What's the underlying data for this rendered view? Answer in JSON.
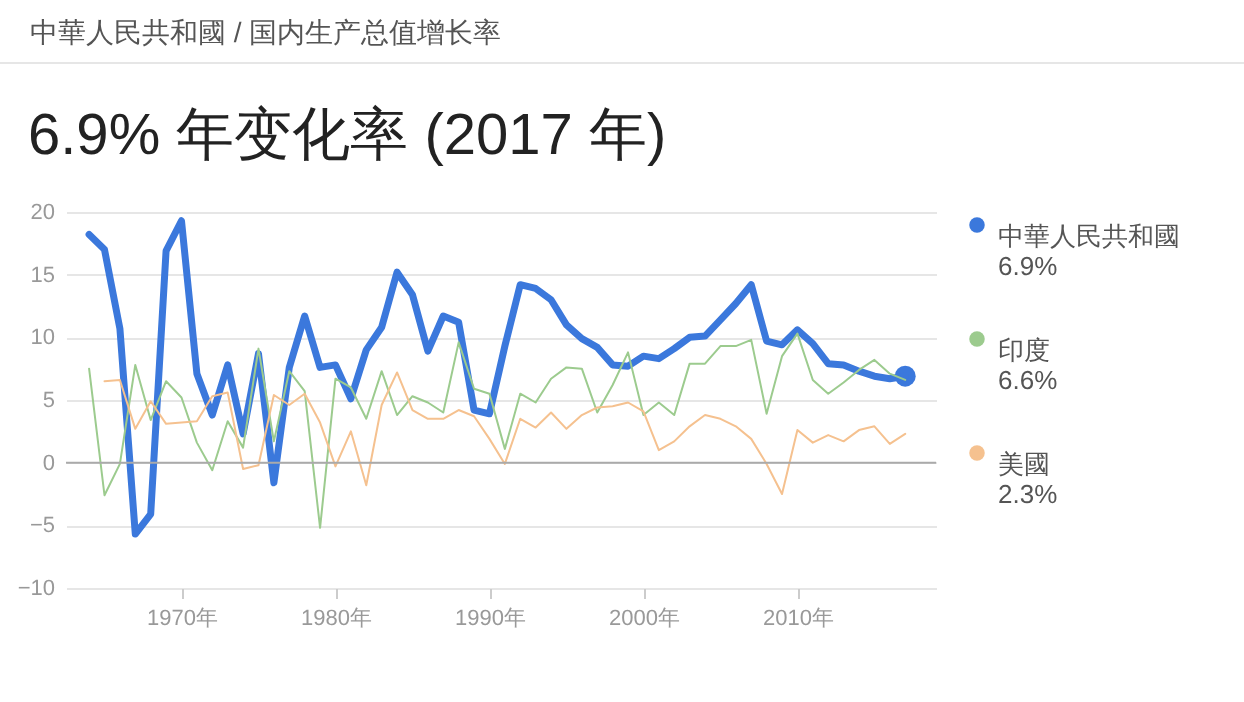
{
  "chart_data": {
    "type": "line",
    "subtitle": "中華人民共和國 / 国内生产总值增长率",
    "title": "6.9% 年变化率 (2017 年)",
    "xlim": [
      1962.5,
      2019
    ],
    "xticks": [
      {
        "value": 1970,
        "label": "1970年"
      },
      {
        "value": 1980,
        "label": "1980年"
      },
      {
        "value": 1990,
        "label": "1990年"
      },
      {
        "value": 2000,
        "label": "2000年"
      },
      {
        "value": 2010,
        "label": "2010年"
      }
    ],
    "ylim": [
      -10,
      20
    ],
    "yticks": [
      -10,
      -5,
      0,
      5,
      10,
      15,
      20
    ],
    "grid": "y",
    "legend": "right",
    "annotations": [
      "6.9%",
      "6.6%",
      "2.3%"
    ],
    "series": [
      {
        "name": "中華人民共和國",
        "color": "#3b78dc",
        "x": [
          1964,
          1965,
          1966,
          1967,
          1968,
          1969,
          1970,
          1971,
          1972,
          1973,
          1974,
          1975,
          1976,
          1977,
          1978,
          1979,
          1980,
          1981,
          1982,
          1983,
          1984,
          1985,
          1986,
          1987,
          1988,
          1989,
          1990,
          1991,
          1992,
          1993,
          1994,
          1995,
          1996,
          1997,
          1998,
          1999,
          2000,
          2001,
          2002,
          2003,
          2004,
          2005,
          2006,
          2007,
          2008,
          2009,
          2010,
          2011,
          2012,
          2013,
          2014,
          2015,
          2016,
          2017
        ],
        "values": [
          18.2,
          17.0,
          10.7,
          -5.7,
          -4.1,
          16.9,
          19.3,
          7.1,
          3.8,
          7.8,
          2.3,
          8.7,
          -1.6,
          7.6,
          11.7,
          7.6,
          7.8,
          5.1,
          9.0,
          10.8,
          15.2,
          13.4,
          8.9,
          11.7,
          11.2,
          4.2,
          3.9,
          9.3,
          14.2,
          13.9,
          13.0,
          11.0,
          9.9,
          9.2,
          7.8,
          7.7,
          8.5,
          8.3,
          9.1,
          10.0,
          10.1,
          11.4,
          12.7,
          14.2,
          9.7,
          9.4,
          10.6,
          9.5,
          7.9,
          7.8,
          7.3,
          6.9,
          6.7,
          6.9
        ]
      },
      {
        "name": "印度",
        "color": "#9ccb8e",
        "x": [
          1964,
          1965,
          1966,
          1967,
          1968,
          1969,
          1970,
          1971,
          1972,
          1973,
          1974,
          1975,
          1976,
          1977,
          1978,
          1979,
          1980,
          1981,
          1982,
          1983,
          1984,
          1985,
          1986,
          1987,
          1988,
          1989,
          1990,
          1991,
          1992,
          1993,
          1994,
          1995,
          1996,
          1997,
          1998,
          1999,
          2000,
          2001,
          2002,
          2003,
          2004,
          2005,
          2006,
          2007,
          2008,
          2009,
          2010,
          2011,
          2012,
          2013,
          2014,
          2015,
          2016,
          2017
        ],
        "values": [
          7.5,
          -2.6,
          -0.1,
          7.8,
          3.4,
          6.5,
          5.2,
          1.6,
          -0.6,
          3.3,
          1.2,
          9.1,
          1.7,
          7.3,
          5.7,
          -5.2,
          6.7,
          6.0,
          3.5,
          7.3,
          3.8,
          5.3,
          4.8,
          4.0,
          9.6,
          5.9,
          5.5,
          1.1,
          5.5,
          4.8,
          6.7,
          7.6,
          7.5,
          4.0,
          6.2,
          8.8,
          3.8,
          4.8,
          3.8,
          7.9,
          7.9,
          9.3,
          9.3,
          9.8,
          3.9,
          8.5,
          10.3,
          6.6,
          5.5,
          6.4,
          7.4,
          8.2,
          7.1,
          6.6
        ]
      },
      {
        "name": "美國",
        "color": "#f5c18f",
        "x": [
          1965,
          1966,
          1967,
          1968,
          1969,
          1970,
          1971,
          1972,
          1973,
          1974,
          1975,
          1976,
          1977,
          1978,
          1979,
          1980,
          1981,
          1982,
          1983,
          1984,
          1985,
          1986,
          1987,
          1988,
          1989,
          1990,
          1991,
          1992,
          1993,
          1994,
          1995,
          1996,
          1997,
          1998,
          1999,
          2000,
          2001,
          2002,
          2003,
          2004,
          2005,
          2006,
          2007,
          2008,
          2009,
          2010,
          2011,
          2012,
          2013,
          2014,
          2015,
          2016,
          2017
        ],
        "values": [
          6.5,
          6.6,
          2.7,
          4.9,
          3.1,
          3.2,
          3.3,
          5.3,
          5.6,
          -0.5,
          -0.2,
          5.4,
          4.6,
          5.5,
          3.2,
          -0.3,
          2.5,
          -1.8,
          4.6,
          7.2,
          4.2,
          3.5,
          3.5,
          4.2,
          3.7,
          1.9,
          -0.1,
          3.5,
          2.8,
          4.0,
          2.7,
          3.8,
          4.4,
          4.5,
          4.8,
          4.1,
          1.0,
          1.7,
          2.9,
          3.8,
          3.5,
          2.9,
          1.9,
          -0.1,
          -2.5,
          2.6,
          1.6,
          2.2,
          1.7,
          2.6,
          2.9,
          1.5,
          2.3
        ]
      }
    ]
  }
}
